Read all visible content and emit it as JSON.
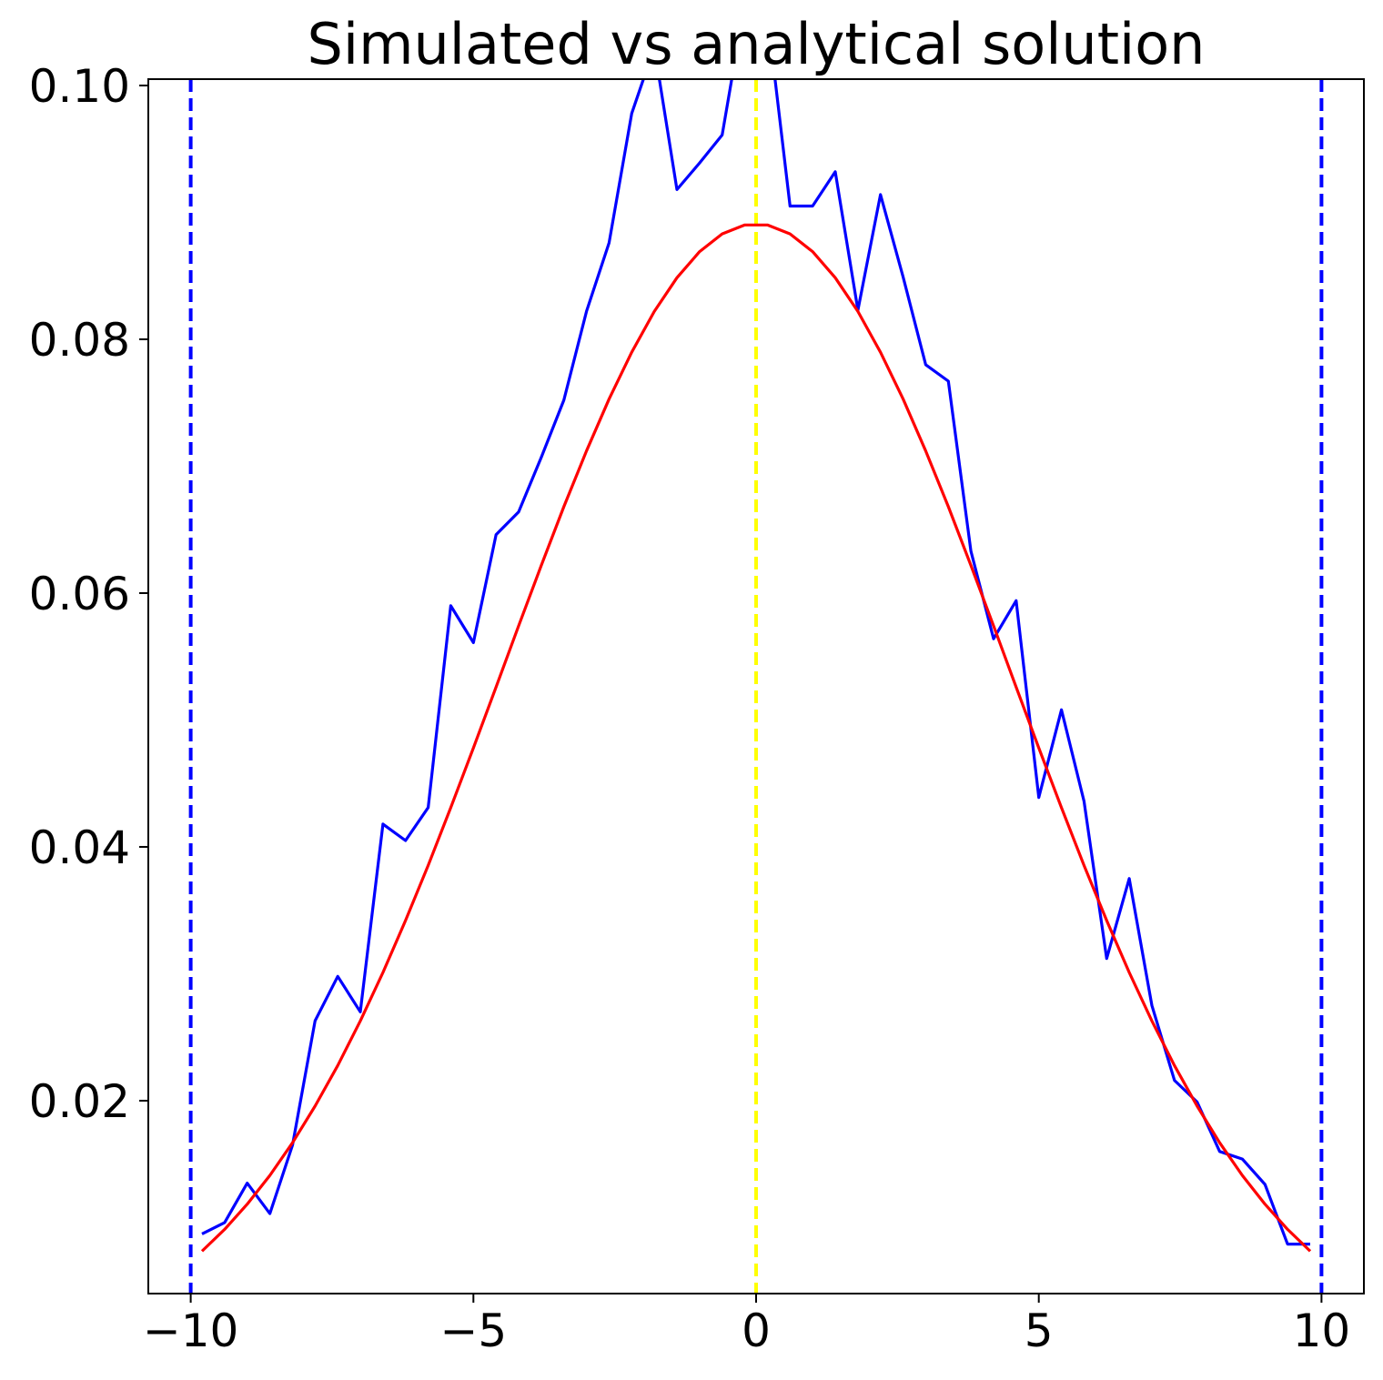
{
  "chart_data": {
    "type": "line",
    "title": "Simulated vs analytical solution",
    "xlabel": "",
    "ylabel": "",
    "xlim": [
      -10.75,
      10.75
    ],
    "ylim": [
      0.0048,
      0.1005
    ],
    "x_ticks": [
      -10,
      -5,
      0,
      5,
      10
    ],
    "x_tick_labels": [
      "−10",
      "−5",
      "0",
      "5",
      "10"
    ],
    "y_ticks": [
      0.02,
      0.04,
      0.06,
      0.08,
      0.1
    ],
    "y_tick_labels": [
      "0.02",
      "0.04",
      "0.06",
      "0.08",
      "0.10"
    ],
    "grid": false,
    "legend": "none",
    "series": [
      {
        "kind": "simulated",
        "color": "#0000ff",
        "x": [
          -9.8,
          -9.4,
          -9.0,
          -8.6,
          -8.2,
          -7.8,
          -7.4,
          -7.0,
          -6.6,
          -6.2,
          -5.8,
          -5.4,
          -5.0,
          -4.6,
          -4.2,
          -3.8,
          -3.4,
          -3.0,
          -2.6,
          -2.2,
          -1.8,
          -1.4,
          -1.0,
          -0.6,
          -0.2,
          0.2,
          0.6,
          1.0,
          1.4,
          1.8,
          2.2,
          2.6,
          3.0,
          3.4,
          3.8,
          4.2,
          4.6,
          5.0,
          5.4,
          5.8,
          6.2,
          6.6,
          7.0,
          7.4,
          7.8,
          8.2,
          8.6,
          9.0,
          9.4,
          9.8
        ],
        "y": [
          0.0095,
          0.0104,
          0.0135,
          0.0111,
          0.0165,
          0.0263,
          0.0298,
          0.027,
          0.0418,
          0.0405,
          0.0431,
          0.059,
          0.0561,
          0.0646,
          0.0664,
          0.0707,
          0.0752,
          0.0822,
          0.0876,
          0.0978,
          0.103,
          0.0918,
          0.0939,
          0.0961,
          0.1065,
          0.1056,
          0.0905,
          0.0905,
          0.0932,
          0.0823,
          0.0914,
          0.0849,
          0.078,
          0.0767,
          0.0633,
          0.0564,
          0.0594,
          0.0439,
          0.0508,
          0.0436,
          0.0312,
          0.0375,
          0.0275,
          0.0216,
          0.0199,
          0.016,
          0.0154,
          0.0134,
          0.0087,
          0.0087
        ]
      },
      {
        "kind": "analytical",
        "color": "#ff0000",
        "sigma": 4.48,
        "peak": 0.0891,
        "x_start": -9.8,
        "x_end": 9.8,
        "n_points": 50
      }
    ],
    "vlines": [
      {
        "x": -10,
        "color": "#0000ff",
        "style": "dashed"
      },
      {
        "x": 0,
        "color": "#ffff00",
        "style": "dashed"
      },
      {
        "x": 10,
        "color": "#0000ff",
        "style": "dashed"
      }
    ]
  }
}
